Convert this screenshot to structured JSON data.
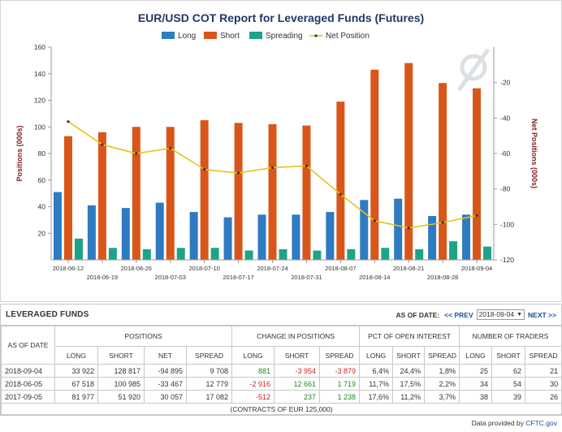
{
  "chart_data": {
    "type": "bar",
    "title": "EUR/USD COT Report for Leveraged Funds (Futures)",
    "xlabel": "",
    "ylabel": "Positions (000s)",
    "y2label": "Net Positions (000s)",
    "ylim": [
      0,
      160
    ],
    "y2lim": [
      -120,
      0
    ],
    "yticks": [
      20,
      40,
      60,
      80,
      100,
      120,
      140,
      160
    ],
    "y2ticks": [
      -120,
      -100,
      -80,
      -60,
      -40,
      -20
    ],
    "legend_position": "top",
    "categories": [
      "2018-06-12",
      "2018-06-19",
      "2018-06-26",
      "2018-07-03",
      "2018-07-10",
      "2018-07-17",
      "2018-07-24",
      "2018-07-31",
      "2018-08-07",
      "2018-08-14",
      "2018-08-21",
      "2018-08-28",
      "2018-09-04"
    ],
    "series": [
      {
        "name": "Long",
        "type": "bar",
        "axis": "left",
        "color": "#2e7bc1",
        "values": [
          51,
          41,
          39,
          43,
          36,
          32,
          34,
          34,
          36,
          45,
          46,
          33,
          34
        ]
      },
      {
        "name": "Short",
        "type": "bar",
        "axis": "left",
        "color": "#d9561a",
        "values": [
          93,
          96,
          100,
          100,
          105,
          103,
          102,
          101,
          119,
          143,
          148,
          133,
          129
        ]
      },
      {
        "name": "Spreading",
        "type": "bar",
        "axis": "left",
        "color": "#1fa386",
        "values": [
          16,
          9,
          8,
          9,
          9,
          7,
          8,
          7,
          8,
          9,
          8,
          14,
          10
        ]
      },
      {
        "name": "Net Position",
        "type": "line",
        "axis": "right",
        "color": "#e8c21a",
        "values": [
          -42,
          -55,
          -60,
          -57,
          -69,
          -71,
          -68,
          -67,
          -83,
          -98,
          -102,
          -99,
          -95
        ]
      }
    ]
  },
  "table": {
    "title": "LEVERAGED FUNDS",
    "as_of_label": "AS OF DATE:",
    "prev_label": "<< PREV",
    "selected_date": "2018-09-04",
    "next_label": "NEXT >>",
    "groups": [
      "AS OF DATE",
      "POSITIONS",
      "CHANGE IN POSITIONS",
      "PCT OF OPEN INTEREST",
      "NUMBER OF TRADERS"
    ],
    "subheaders": [
      "LONG",
      "SHORT",
      "NET",
      "SPREAD",
      "LONG",
      "SHORT",
      "SPREAD",
      "LONG",
      "SHORT",
      "SPREAD",
      "LONG",
      "SHORT",
      "SPREAD"
    ],
    "rows": [
      {
        "date": "2018-09-04",
        "cells": [
          "33 922",
          "128 817",
          "-94 895",
          "9 708",
          "881",
          "-3 954",
          "-3 879",
          "6,4%",
          "24,4%",
          "1,8%",
          "25",
          "62",
          "21"
        ]
      },
      {
        "date": "2018-06-05",
        "cells": [
          "67 518",
          "100 985",
          "-33 467",
          "12 779",
          "-2 916",
          "12 661",
          "1 719",
          "11,7%",
          "17,5%",
          "2,2%",
          "34",
          "54",
          "30"
        ]
      },
      {
        "date": "2017-09-05",
        "cells": [
          "81 977",
          "51 920",
          "30 057",
          "17 082",
          "-512",
          "237",
          "1 238",
          "17,6%",
          "11,2%",
          "3,7%",
          "38",
          "39",
          "26"
        ]
      }
    ],
    "footer": "(CONTRACTS OF EUR 125,000)"
  },
  "credit": {
    "prefix": "Data provided by",
    "link": "CFTC.gov"
  },
  "colors": {
    "positive": "#1e8a1e",
    "negative": "#d02020",
    "title": "#1f3864",
    "axis_label": "#7a1f1f"
  }
}
